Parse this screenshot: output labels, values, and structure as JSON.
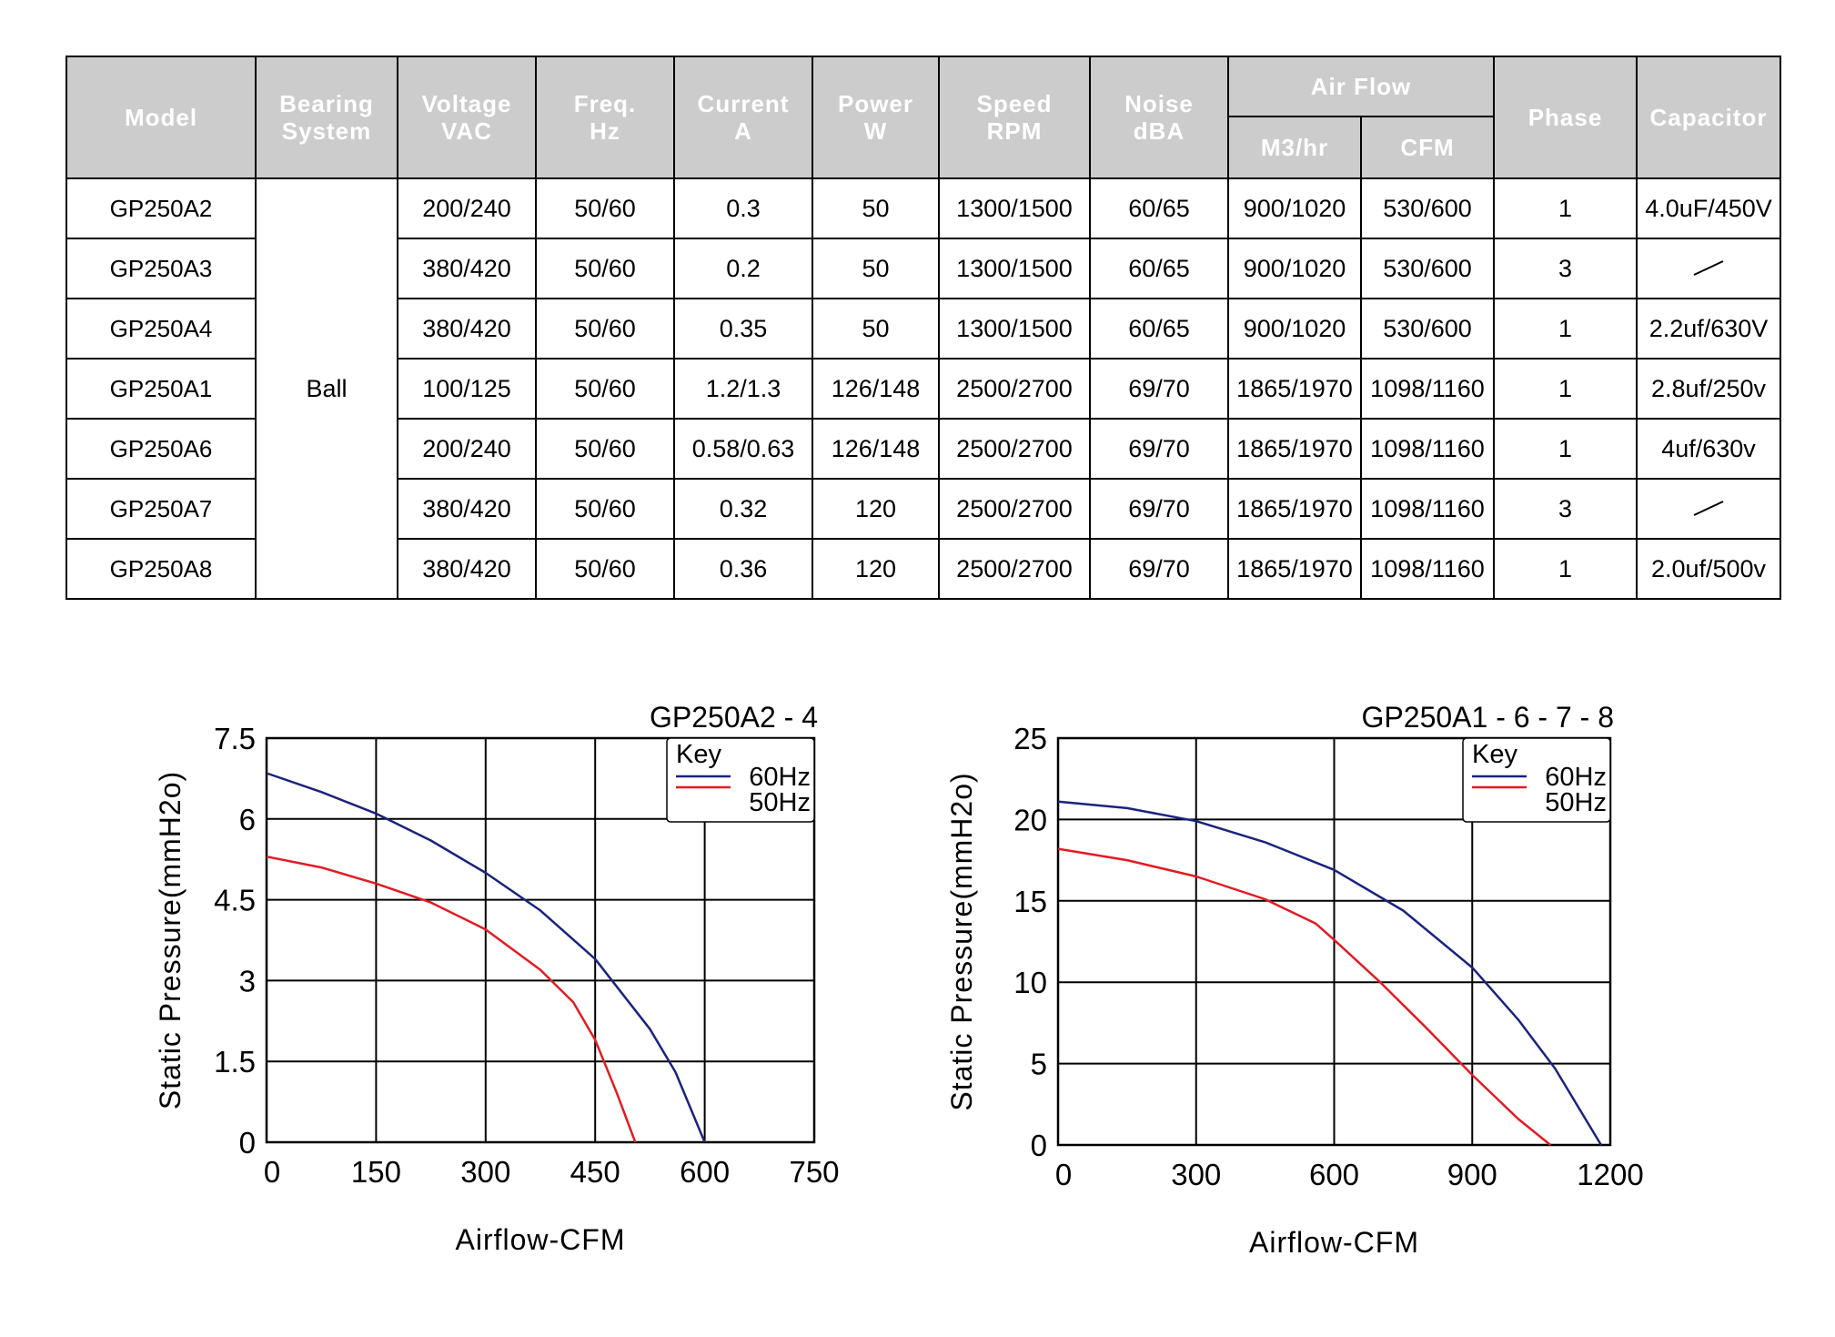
{
  "table": {
    "headers": {
      "model": "Model",
      "bearing": [
        "Bearing",
        "System"
      ],
      "voltage": [
        "Voltage",
        "VAC"
      ],
      "freq": [
        "Freq.",
        "Hz"
      ],
      "current": [
        "Current",
        "A"
      ],
      "power": [
        "Power",
        "W"
      ],
      "speed": [
        "Speed",
        "RPM"
      ],
      "noise": [
        "Noise",
        "dBA"
      ],
      "airflow": "Air Flow",
      "m3hr": "M3/hr",
      "cfm": "CFM",
      "phase": "Phase",
      "capacitor": "Capacitor"
    },
    "bearing_value": "Ball",
    "rows": [
      {
        "model": "GP250A2",
        "voltage": "200/240",
        "freq": "50/60",
        "current": "0.3",
        "power": "50",
        "speed": "1300/1500",
        "noise": "60/65",
        "m3hr": "900/1020",
        "cfm": "530/600",
        "phase": "1",
        "capacitor": "4.0uF/450V"
      },
      {
        "model": "GP250A3",
        "voltage": "380/420",
        "freq": "50/60",
        "current": "0.2",
        "power": "50",
        "speed": "1300/1500",
        "noise": "60/65",
        "m3hr": "900/1020",
        "cfm": "530/600",
        "phase": "3",
        "capacitor": ""
      },
      {
        "model": "GP250A4",
        "voltage": "380/420",
        "freq": "50/60",
        "current": "0.35",
        "power": "50",
        "speed": "1300/1500",
        "noise": "60/65",
        "m3hr": "900/1020",
        "cfm": "530/600",
        "phase": "1",
        "capacitor": "2.2uf/630V"
      },
      {
        "model": "GP250A1",
        "voltage": "100/125",
        "freq": "50/60",
        "current": "1.2/1.3",
        "power": "126/148",
        "speed": "2500/2700",
        "noise": "69/70",
        "m3hr": "1865/1970",
        "cfm": "1098/1160",
        "phase": "1",
        "capacitor": "2.8uf/250v"
      },
      {
        "model": "GP250A6",
        "voltage": "200/240",
        "freq": "50/60",
        "current": "0.58/0.63",
        "power": "126/148",
        "speed": "2500/2700",
        "noise": "69/70",
        "m3hr": "1865/1970",
        "cfm": "1098/1160",
        "phase": "1",
        "capacitor": "4uf/630v"
      },
      {
        "model": "GP250A7",
        "voltage": "380/420",
        "freq": "50/60",
        "current": "0.32",
        "power": "120",
        "speed": "2500/2700",
        "noise": "69/70",
        "m3hr": "1865/1970",
        "cfm": "1098/1160",
        "phase": "3",
        "capacitor": ""
      },
      {
        "model": "GP250A8",
        "voltage": "380/420",
        "freq": "50/60",
        "current": "0.36",
        "power": "120",
        "speed": "2500/2700",
        "noise": "69/70",
        "m3hr": "1865/1970",
        "cfm": "1098/1160",
        "phase": "1",
        "capacitor": "2.0uf/500v"
      }
    ]
  },
  "chart_data": [
    {
      "type": "line",
      "title": "GP250A2 - 4",
      "xlabel": "Airflow-CFM",
      "ylabel": "Static Pressure(mmH2o)",
      "xlim": [
        0,
        750
      ],
      "ylim": [
        0,
        7.5
      ],
      "xticks": [
        0,
        150,
        300,
        450,
        600,
        750
      ],
      "yticks": [
        0,
        1.5,
        3,
        4.5,
        6,
        7.5
      ],
      "grid": true,
      "legend": {
        "title": "Key",
        "placement": "top-right"
      },
      "series": [
        {
          "name": "60Hz",
          "color": "#1a237e",
          "x": [
            0,
            75,
            150,
            225,
            300,
            375,
            450,
            525,
            560,
            600
          ],
          "y": [
            6.85,
            6.5,
            6.1,
            5.6,
            5.0,
            4.3,
            3.4,
            2.1,
            1.3,
            0
          ]
        },
        {
          "name": "50Hz",
          "color": "#e31b23",
          "x": [
            0,
            75,
            150,
            225,
            300,
            375,
            420,
            450,
            480,
            505
          ],
          "y": [
            5.3,
            5.1,
            4.8,
            4.45,
            3.95,
            3.2,
            2.6,
            1.9,
            0.9,
            0
          ]
        }
      ]
    },
    {
      "type": "line",
      "title": "GP250A1 - 6 - 7 - 8",
      "xlabel": "Airflow-CFM",
      "ylabel": "Static Pressure(mmH2o)",
      "xlim": [
        0,
        1200
      ],
      "ylim": [
        0,
        25
      ],
      "xticks": [
        0,
        300,
        600,
        900,
        1200
      ],
      "yticks": [
        0,
        5,
        10,
        15,
        20,
        25
      ],
      "grid": true,
      "legend": {
        "title": "Key",
        "placement": "top-right"
      },
      "series": [
        {
          "name": "60Hz",
          "color": "#1a237e",
          "x": [
            0,
            150,
            300,
            450,
            600,
            750,
            900,
            1000,
            1080,
            1180
          ],
          "y": [
            21.1,
            20.7,
            19.9,
            18.6,
            16.9,
            14.4,
            10.9,
            7.7,
            4.7,
            0
          ]
        },
        {
          "name": "50Hz",
          "color": "#e31b23",
          "x": [
            0,
            150,
            300,
            450,
            560,
            600,
            700,
            800,
            900,
            1000,
            1070
          ],
          "y": [
            18.2,
            17.5,
            16.5,
            15.1,
            13.6,
            12.6,
            10.0,
            7.2,
            4.3,
            1.6,
            0
          ]
        }
      ]
    }
  ]
}
